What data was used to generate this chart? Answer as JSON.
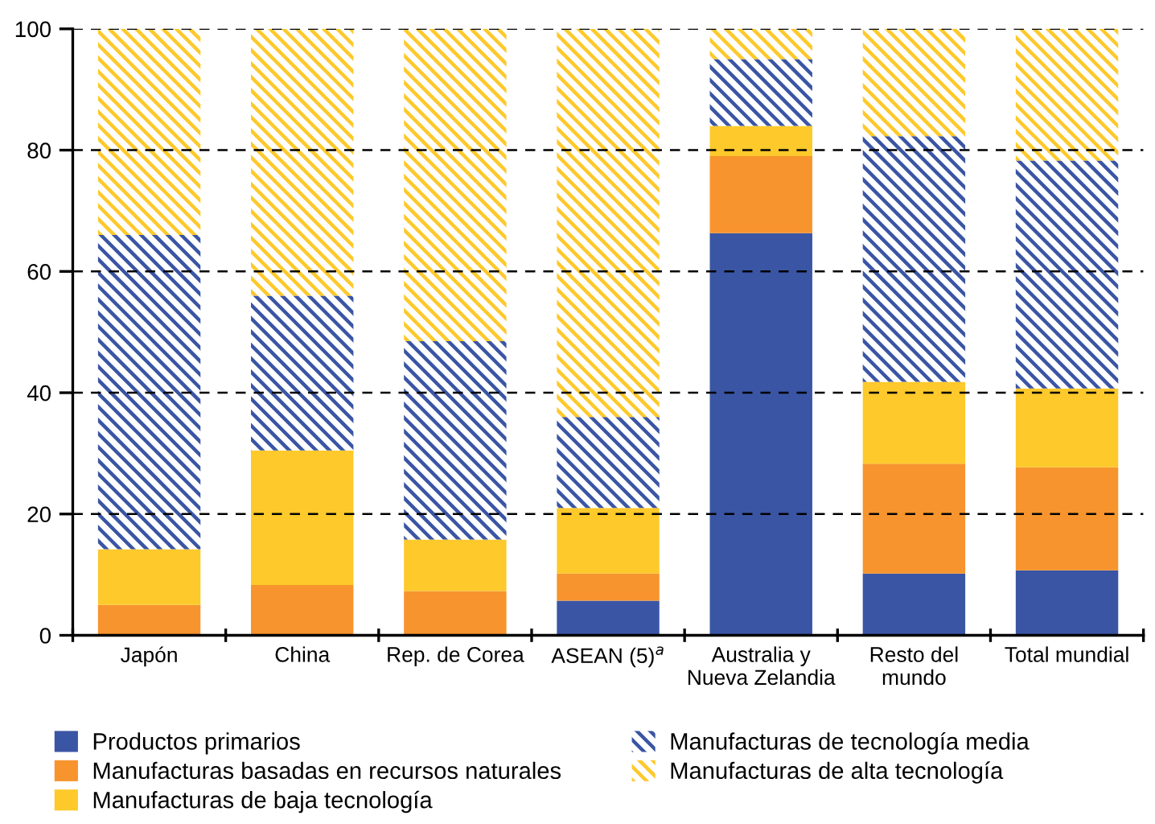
{
  "chart_data": {
    "type": "bar",
    "stacked": true,
    "categories": [
      "Japón",
      "China",
      "Rep. de Corea",
      "ASEAN (5)$^{a}$",
      "Australia y\nNueva Zelandia",
      "Resto del\nmundo",
      "Total mundial"
    ],
    "series": [
      {
        "name": "Productos primarios",
        "color": "#3a55a4",
        "values": [
          0,
          0,
          0,
          5.7,
          66.3,
          10.2,
          10.7
        ]
      },
      {
        "name": "Manufacturas basadas en recursos naturales",
        "color": "#f7942d",
        "values": [
          5.0,
          8.3,
          7.3,
          4.5,
          12.7,
          18.1,
          17.0
        ]
      },
      {
        "name": "Manufacturas de baja tecnología",
        "color": "#fdc92b",
        "values": [
          9.2,
          22.2,
          8.5,
          10.8,
          5.0,
          13.5,
          13.0
        ]
      },
      {
        "name": "Manufacturas de tecnología media",
        "color": "#3a55a4",
        "values": [
          51.8,
          25.5,
          32.7,
          15.0,
          11.0,
          40.5,
          37.6
        ]
      },
      {
        "name": "Manufacturas de alta tecnología",
        "color": "#fdc92b",
        "values": [
          34.0,
          44.0,
          51.5,
          64.0,
          5.0,
          17.7,
          21.7
        ]
      }
    ],
    "ylim": [
      0,
      100
    ],
    "yticks": [
      0,
      20,
      40,
      60,
      80,
      100
    ],
    "grid": "y",
    "legend": "bottom"
  }
}
